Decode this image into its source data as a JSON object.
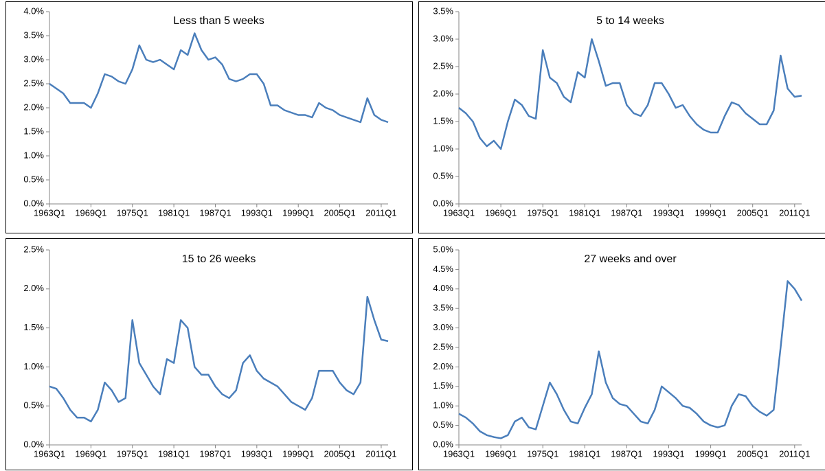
{
  "chart_data": [
    {
      "type": "line",
      "title": "Less than 5 weeks",
      "color": "#4a7ebb",
      "categories": [
        "1963Q1",
        null,
        null,
        null,
        null,
        null,
        "1969Q1",
        null,
        null,
        null,
        null,
        null,
        "1975Q1",
        null,
        null,
        null,
        null,
        null,
        "1981Q1",
        null,
        null,
        null,
        null,
        null,
        "1987Q1",
        null,
        null,
        null,
        null,
        null,
        "1993Q1",
        null,
        null,
        null,
        null,
        null,
        "1999Q1",
        null,
        null,
        null,
        null,
        null,
        "2005Q1",
        null,
        null,
        null,
        null,
        null,
        "2011Q1",
        null
      ],
      "values": [
        2.5,
        2.4,
        2.3,
        2.1,
        2.1,
        2.1,
        2.0,
        2.3,
        2.7,
        2.65,
        2.55,
        2.5,
        2.8,
        3.3,
        3.0,
        2.95,
        3.0,
        2.9,
        2.8,
        3.2,
        3.1,
        3.55,
        3.2,
        3.0,
        3.05,
        2.9,
        2.6,
        2.55,
        2.6,
        2.7,
        2.7,
        2.5,
        2.05,
        2.05,
        1.95,
        1.9,
        1.85,
        1.85,
        1.8,
        2.1,
        2.0,
        1.95,
        1.85,
        1.8,
        1.75,
        1.7,
        2.2,
        1.85,
        1.75,
        1.7
      ],
      "ylim": [
        0,
        4
      ],
      "yticks": [
        {
          "value": 0,
          "label": "0.0%"
        },
        {
          "value": 0.5,
          "label": "0.5%"
        },
        {
          "value": 1,
          "label": "1.0%"
        },
        {
          "value": 1.5,
          "label": "1.5%"
        },
        {
          "value": 2,
          "label": "2.0%"
        },
        {
          "value": 2.5,
          "label": "2.5%"
        },
        {
          "value": 3,
          "label": "3.0%"
        },
        {
          "value": 3.5,
          "label": "3.5%"
        },
        {
          "value": 4,
          "label": "4.0%"
        }
      ]
    },
    {
      "type": "line",
      "title": "5 to 14 weeks",
      "color": "#4a7ebb",
      "categories": [
        "1963Q1",
        null,
        null,
        null,
        null,
        null,
        "1969Q1",
        null,
        null,
        null,
        null,
        null,
        "1975Q1",
        null,
        null,
        null,
        null,
        null,
        "1981Q1",
        null,
        null,
        null,
        null,
        null,
        "1987Q1",
        null,
        null,
        null,
        null,
        null,
        "1993Q1",
        null,
        null,
        null,
        null,
        null,
        "1999Q1",
        null,
        null,
        null,
        null,
        null,
        "2005Q1",
        null,
        null,
        null,
        null,
        null,
        "2011Q1",
        null
      ],
      "values": [
        1.75,
        1.65,
        1.5,
        1.2,
        1.05,
        1.15,
        1.0,
        1.5,
        1.9,
        1.8,
        1.6,
        1.55,
        2.8,
        2.3,
        2.2,
        1.95,
        1.85,
        2.4,
        2.3,
        3.0,
        2.6,
        2.15,
        2.2,
        2.2,
        1.8,
        1.65,
        1.6,
        1.8,
        2.2,
        2.2,
        2.0,
        1.75,
        1.8,
        1.6,
        1.45,
        1.35,
        1.3,
        1.3,
        1.6,
        1.85,
        1.8,
        1.65,
        1.55,
        1.45,
        1.45,
        1.7,
        2.7,
        2.1,
        1.95,
        1.97
      ],
      "ylim": [
        0,
        3.5
      ],
      "yticks": [
        {
          "value": 0,
          "label": "0.0%"
        },
        {
          "value": 0.5,
          "label": "0.5%"
        },
        {
          "value": 1,
          "label": "1.0%"
        },
        {
          "value": 1.5,
          "label": "1.5%"
        },
        {
          "value": 2,
          "label": "2.0%"
        },
        {
          "value": 2.5,
          "label": "2.5%"
        },
        {
          "value": 3,
          "label": "3.0%"
        },
        {
          "value": 3.5,
          "label": "3.5%"
        }
      ]
    },
    {
      "type": "line",
      "title": "15 to 26 weeks",
      "color": "#4a7ebb",
      "categories": [
        "1963Q1",
        null,
        null,
        null,
        null,
        null,
        "1969Q1",
        null,
        null,
        null,
        null,
        null,
        "1975Q1",
        null,
        null,
        null,
        null,
        null,
        "1981Q1",
        null,
        null,
        null,
        null,
        null,
        "1987Q1",
        null,
        null,
        null,
        null,
        null,
        "1993Q1",
        null,
        null,
        null,
        null,
        null,
        "1999Q1",
        null,
        null,
        null,
        null,
        null,
        "2005Q1",
        null,
        null,
        null,
        null,
        null,
        "2011Q1",
        null
      ],
      "values": [
        0.75,
        0.72,
        0.6,
        0.45,
        0.35,
        0.35,
        0.3,
        0.45,
        0.8,
        0.7,
        0.55,
        0.6,
        1.6,
        1.05,
        0.9,
        0.75,
        0.65,
        1.1,
        1.05,
        1.6,
        1.5,
        1.0,
        0.9,
        0.9,
        0.75,
        0.65,
        0.6,
        0.7,
        1.05,
        1.15,
        0.95,
        0.85,
        0.8,
        0.75,
        0.65,
        0.55,
        0.5,
        0.45,
        0.6,
        0.95,
        0.95,
        0.95,
        0.8,
        0.7,
        0.65,
        0.8,
        1.9,
        1.6,
        1.35,
        1.33
      ],
      "ylim": [
        0,
        2.5
      ],
      "yticks": [
        {
          "value": 0,
          "label": "0.0%"
        },
        {
          "value": 0.5,
          "label": "0.5%"
        },
        {
          "value": 1,
          "label": "1.0%"
        },
        {
          "value": 1.5,
          "label": "1.5%"
        },
        {
          "value": 2,
          "label": "2.0%"
        },
        {
          "value": 2.5,
          "label": "2.5%"
        }
      ]
    },
    {
      "type": "line",
      "title": "27 weeks and over",
      "color": "#4a7ebb",
      "categories": [
        "1963Q1",
        null,
        null,
        null,
        null,
        null,
        "1969Q1",
        null,
        null,
        null,
        null,
        null,
        "1975Q1",
        null,
        null,
        null,
        null,
        null,
        "1981Q1",
        null,
        null,
        null,
        null,
        null,
        "1987Q1",
        null,
        null,
        null,
        null,
        null,
        "1993Q1",
        null,
        null,
        null,
        null,
        null,
        "1999Q1",
        null,
        null,
        null,
        null,
        null,
        "2005Q1",
        null,
        null,
        null,
        null,
        null,
        "2011Q1",
        null
      ],
      "values": [
        0.8,
        0.7,
        0.55,
        0.35,
        0.25,
        0.2,
        0.17,
        0.25,
        0.6,
        0.7,
        0.45,
        0.4,
        1.0,
        1.6,
        1.3,
        0.9,
        0.6,
        0.55,
        0.95,
        1.3,
        2.4,
        1.6,
        1.2,
        1.05,
        1.0,
        0.8,
        0.6,
        0.55,
        0.9,
        1.5,
        1.35,
        1.2,
        1.0,
        0.95,
        0.8,
        0.6,
        0.5,
        0.45,
        0.5,
        1.0,
        1.3,
        1.25,
        1.0,
        0.85,
        0.75,
        0.9,
        2.5,
        4.2,
        4.0,
        3.7
      ],
      "ylim": [
        0,
        5
      ],
      "yticks": [
        {
          "value": 0,
          "label": "0.0%"
        },
        {
          "value": 0.5,
          "label": "0.5%"
        },
        {
          "value": 1,
          "label": "1.0%"
        },
        {
          "value": 1.5,
          "label": "1.5%"
        },
        {
          "value": 2,
          "label": "2.0%"
        },
        {
          "value": 2.5,
          "label": "2.5%"
        },
        {
          "value": 3,
          "label": "3.0%"
        },
        {
          "value": 3.5,
          "label": "3.5%"
        },
        {
          "value": 4,
          "label": "4.0%"
        },
        {
          "value": 4.5,
          "label": "4.5%"
        },
        {
          "value": 5,
          "label": "5.0%"
        }
      ]
    }
  ]
}
